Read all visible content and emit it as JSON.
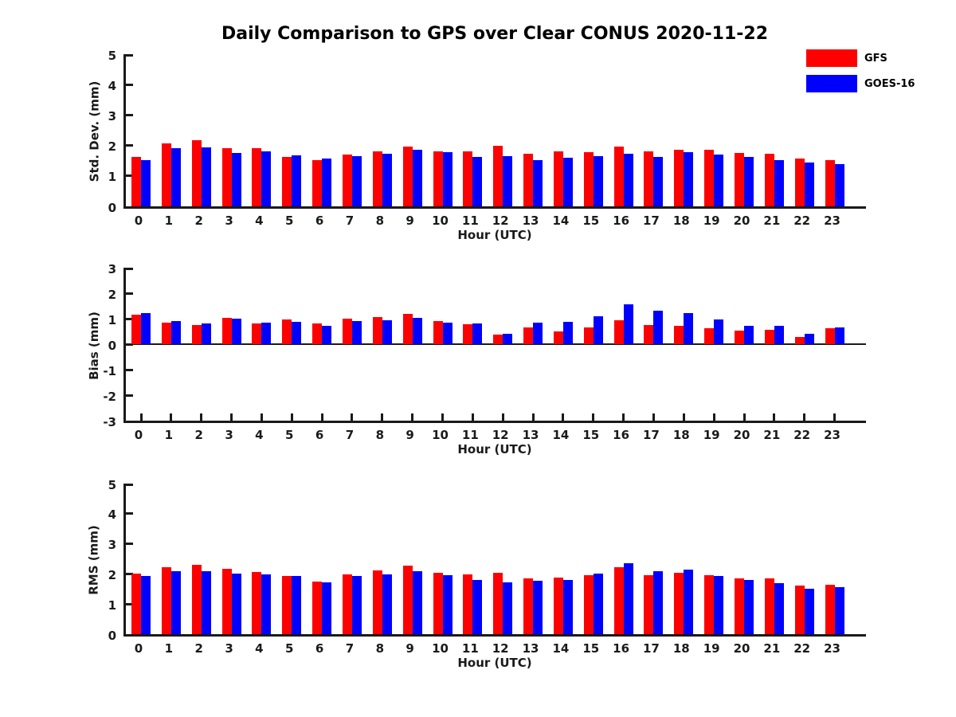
{
  "title": "Daily Comparison to GPS over Clear CONUS 2020-11-22",
  "colors": {
    "gfs": "#ff0000",
    "goes16": "#0000ff",
    "axis": "#1a1a1a",
    "background": "#ffffff"
  },
  "legend": {
    "position": "top-right",
    "entries": [
      {
        "label": "GFS",
        "color": "#ff0000"
      },
      {
        "label": "GOES-16",
        "color": "#0000ff"
      }
    ]
  },
  "chart_data": [
    {
      "type": "bar",
      "panel": "std-dev",
      "ylabel": "Std. Dev. (mm)",
      "xlabel": "Hour (UTC)",
      "ylim": [
        0,
        5
      ],
      "yticks": [
        0,
        1,
        2,
        3,
        4,
        5
      ],
      "grid": false,
      "categories": [
        0,
        1,
        2,
        3,
        4,
        5,
        6,
        7,
        8,
        9,
        10,
        11,
        12,
        13,
        14,
        15,
        16,
        17,
        18,
        19,
        20,
        21,
        22,
        23
      ],
      "series": [
        {
          "name": "GFS",
          "color": "#ff0000",
          "values": [
            1.63,
            2.07,
            2.18,
            1.91,
            1.9,
            1.62,
            1.51,
            1.7,
            1.81,
            1.97,
            1.8,
            1.81,
            1.99,
            1.72,
            1.8,
            1.79,
            1.96,
            1.8,
            1.87,
            1.85,
            1.75,
            1.72,
            1.58,
            1.52
          ]
        },
        {
          "name": "GOES-16",
          "color": "#0000ff",
          "values": [
            1.51,
            1.9,
            1.95,
            1.76,
            1.8,
            1.68,
            1.56,
            1.66,
            1.74,
            1.85,
            1.77,
            1.61,
            1.66,
            1.53,
            1.6,
            1.65,
            1.73,
            1.61,
            1.78,
            1.69,
            1.63,
            1.51,
            1.45,
            1.4
          ]
        }
      ]
    },
    {
      "type": "bar",
      "panel": "bias",
      "ylabel": "Bias (mm)",
      "xlabel": "Hour (UTC)",
      "ylim": [
        -3,
        3
      ],
      "yticks": [
        -3,
        -2,
        -1,
        0,
        1,
        2,
        3
      ],
      "grid": false,
      "zero_line": true,
      "categories": [
        0,
        1,
        2,
        3,
        4,
        5,
        6,
        7,
        8,
        9,
        10,
        11,
        12,
        13,
        14,
        15,
        16,
        17,
        18,
        19,
        20,
        21,
        22,
        23
      ],
      "series": [
        {
          "name": "GFS",
          "color": "#ff0000",
          "values": [
            1.15,
            0.83,
            0.75,
            1.04,
            0.81,
            0.97,
            0.81,
            1.01,
            1.05,
            1.2,
            0.9,
            0.77,
            0.37,
            0.66,
            0.51,
            0.66,
            0.93,
            0.75,
            0.71,
            0.62,
            0.53,
            0.56,
            0.27,
            0.61
          ]
        },
        {
          "name": "GOES-16",
          "color": "#0000ff",
          "values": [
            1.21,
            0.9,
            0.82,
            1.01,
            0.85,
            0.89,
            0.71,
            0.9,
            0.94,
            1.03,
            0.83,
            0.8,
            0.42,
            0.84,
            0.87,
            1.09,
            1.55,
            1.31,
            1.23,
            0.96,
            0.71,
            0.71,
            0.4,
            0.67
          ]
        }
      ]
    },
    {
      "type": "bar",
      "panel": "rms",
      "ylabel": "RMS (mm)",
      "xlabel": "Hour (UTC)",
      "ylim": [
        0,
        5
      ],
      "yticks": [
        0,
        1,
        2,
        3,
        4,
        5
      ],
      "grid": false,
      "categories": [
        0,
        1,
        2,
        3,
        4,
        5,
        6,
        7,
        8,
        9,
        10,
        11,
        12,
        13,
        14,
        15,
        16,
        17,
        18,
        19,
        20,
        21,
        22,
        23
      ],
      "series": [
        {
          "name": "GFS",
          "color": "#ff0000",
          "values": [
            2.02,
            2.21,
            2.3,
            2.16,
            2.06,
            1.94,
            1.74,
            1.98,
            2.11,
            2.28,
            2.03,
            1.98,
            2.04,
            1.86,
            1.89,
            1.95,
            2.21,
            1.97,
            2.03,
            1.97,
            1.86,
            1.84,
            1.61,
            1.64
          ]
        },
        {
          "name": "GOES-16",
          "color": "#0000ff",
          "values": [
            1.93,
            2.08,
            2.1,
            2.01,
            1.98,
            1.92,
            1.71,
            1.92,
            1.98,
            2.1,
            1.96,
            1.81,
            1.73,
            1.76,
            1.8,
            2.0,
            2.36,
            2.08,
            2.15,
            1.94,
            1.81,
            1.69,
            1.52,
            1.55
          ]
        }
      ]
    }
  ]
}
